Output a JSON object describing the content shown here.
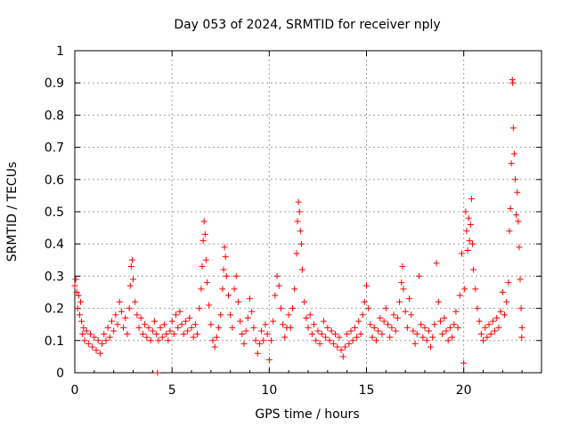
{
  "chart_data": {
    "type": "scatter",
    "title": "Day 053 of 2024, SRMTID for receiver nply",
    "xlabel": "GPS time / hours",
    "ylabel": "SRMTID / TECUs",
    "xlim": [
      0,
      24
    ],
    "ylim": [
      0,
      1
    ],
    "grid": true,
    "marker": "+",
    "color": "#ff0000",
    "xticks": [
      0,
      5,
      10,
      15,
      20
    ],
    "xtick_labels": [
      "0",
      "5",
      "10",
      "15",
      "20"
    ],
    "yticks": [
      0,
      0.1,
      0.2,
      0.3,
      0.4,
      0.5,
      0.6,
      0.7,
      0.8,
      0.9,
      1
    ],
    "ytick_labels": [
      "0",
      "0.1",
      "0.2",
      "0.3",
      "0.4",
      "0.5",
      "0.6",
      "0.7",
      "0.8",
      "0.9",
      "1"
    ],
    "series": [
      {
        "name": "SRMTID",
        "points": [
          [
            0.0,
            0.27
          ],
          [
            0.05,
            0.29
          ],
          [
            0.1,
            0.25
          ],
          [
            0.15,
            0.2
          ],
          [
            0.2,
            0.24
          ],
          [
            0.25,
            0.18
          ],
          [
            0.3,
            0.22
          ],
          [
            0.35,
            0.16
          ],
          [
            0.4,
            0.12
          ],
          [
            0.45,
            0.14
          ],
          [
            0.5,
            0.1
          ],
          [
            0.6,
            0.13
          ],
          [
            0.7,
            0.09
          ],
          [
            0.8,
            0.12
          ],
          [
            0.9,
            0.08
          ],
          [
            1.0,
            0.11
          ],
          [
            1.1,
            0.07
          ],
          [
            1.2,
            0.1
          ],
          [
            1.3,
            0.06
          ],
          [
            1.4,
            0.09
          ],
          [
            1.5,
            0.12
          ],
          [
            1.6,
            0.1
          ],
          [
            1.7,
            0.14
          ],
          [
            1.8,
            0.11
          ],
          [
            1.9,
            0.16
          ],
          [
            2.0,
            0.13
          ],
          [
            2.1,
            0.18
          ],
          [
            2.2,
            0.15
          ],
          [
            2.3,
            0.22
          ],
          [
            2.4,
            0.19
          ],
          [
            2.5,
            0.14
          ],
          [
            2.6,
            0.17
          ],
          [
            2.7,
            0.12
          ],
          [
            2.8,
            0.2
          ],
          [
            2.85,
            0.27
          ],
          [
            2.9,
            0.33
          ],
          [
            2.95,
            0.35
          ],
          [
            3.0,
            0.29
          ],
          [
            3.1,
            0.22
          ],
          [
            3.2,
            0.18
          ],
          [
            3.3,
            0.14
          ],
          [
            3.4,
            0.17
          ],
          [
            3.5,
            0.12
          ],
          [
            3.6,
            0.15
          ],
          [
            3.7,
            0.11
          ],
          [
            3.8,
            0.14
          ],
          [
            3.9,
            0.1
          ],
          [
            4.0,
            0.13
          ],
          [
            4.1,
            0.16
          ],
          [
            4.2,
            0.12
          ],
          [
            4.25,
            0.0
          ],
          [
            4.3,
            0.1
          ],
          [
            4.4,
            0.14
          ],
          [
            4.5,
            0.11
          ],
          [
            4.6,
            0.15
          ],
          [
            4.7,
            0.12
          ],
          [
            4.8,
            0.1
          ],
          [
            4.9,
            0.13
          ],
          [
            5.0,
            0.16
          ],
          [
            5.1,
            0.12
          ],
          [
            5.2,
            0.18
          ],
          [
            5.3,
            0.14
          ],
          [
            5.4,
            0.19
          ],
          [
            5.5,
            0.15
          ],
          [
            5.6,
            0.12
          ],
          [
            5.7,
            0.16
          ],
          [
            5.8,
            0.13
          ],
          [
            5.9,
            0.17
          ],
          [
            6.0,
            0.14
          ],
          [
            6.1,
            0.11
          ],
          [
            6.2,
            0.15
          ],
          [
            6.3,
            0.12
          ],
          [
            6.4,
            0.2
          ],
          [
            6.5,
            0.26
          ],
          [
            6.55,
            0.33
          ],
          [
            6.6,
            0.41
          ],
          [
            6.65,
            0.47
          ],
          [
            6.7,
            0.43
          ],
          [
            6.75,
            0.35
          ],
          [
            6.8,
            0.28
          ],
          [
            6.9,
            0.21
          ],
          [
            7.0,
            0.15
          ],
          [
            7.1,
            0.1
          ],
          [
            7.2,
            0.08
          ],
          [
            7.3,
            0.11
          ],
          [
            7.4,
            0.14
          ],
          [
            7.5,
            0.18
          ],
          [
            7.6,
            0.26
          ],
          [
            7.65,
            0.32
          ],
          [
            7.7,
            0.39
          ],
          [
            7.75,
            0.36
          ],
          [
            7.8,
            0.3
          ],
          [
            7.9,
            0.24
          ],
          [
            8.0,
            0.18
          ],
          [
            8.1,
            0.14
          ],
          [
            8.2,
            0.26
          ],
          [
            8.3,
            0.3
          ],
          [
            8.4,
            0.22
          ],
          [
            8.5,
            0.16
          ],
          [
            8.6,
            0.12
          ],
          [
            8.7,
            0.09
          ],
          [
            8.8,
            0.13
          ],
          [
            8.9,
            0.17
          ],
          [
            9.0,
            0.23
          ],
          [
            9.1,
            0.19
          ],
          [
            9.2,
            0.14
          ],
          [
            9.3,
            0.1
          ],
          [
            9.4,
            0.06
          ],
          [
            9.5,
            0.09
          ],
          [
            9.6,
            0.13
          ],
          [
            9.7,
            0.1
          ],
          [
            9.8,
            0.15
          ],
          [
            9.9,
            0.12
          ],
          [
            10.0,
            0.04
          ],
          [
            10.1,
            0.1
          ],
          [
            10.2,
            0.16
          ],
          [
            10.3,
            0.24
          ],
          [
            10.4,
            0.3
          ],
          [
            10.5,
            0.27
          ],
          [
            10.6,
            0.2
          ],
          [
            10.7,
            0.15
          ],
          [
            10.8,
            0.11
          ],
          [
            10.9,
            0.14
          ],
          [
            11.0,
            0.18
          ],
          [
            11.1,
            0.14
          ],
          [
            11.2,
            0.2
          ],
          [
            11.3,
            0.26
          ],
          [
            11.4,
            0.37
          ],
          [
            11.45,
            0.47
          ],
          [
            11.5,
            0.53
          ],
          [
            11.55,
            0.5
          ],
          [
            11.6,
            0.44
          ],
          [
            11.65,
            0.4
          ],
          [
            11.7,
            0.32
          ],
          [
            11.8,
            0.22
          ],
          [
            11.9,
            0.17
          ],
          [
            12.0,
            0.14
          ],
          [
            12.1,
            0.18
          ],
          [
            12.2,
            0.12
          ],
          [
            12.3,
            0.15
          ],
          [
            12.4,
            0.1
          ],
          [
            12.5,
            0.13
          ],
          [
            12.6,
            0.09
          ],
          [
            12.7,
            0.12
          ],
          [
            12.8,
            0.16
          ],
          [
            12.9,
            0.11
          ],
          [
            13.0,
            0.14
          ],
          [
            13.1,
            0.1
          ],
          [
            13.2,
            0.13
          ],
          [
            13.3,
            0.09
          ],
          [
            13.4,
            0.12
          ],
          [
            13.5,
            0.08
          ],
          [
            13.6,
            0.11
          ],
          [
            13.7,
            0.07
          ],
          [
            13.8,
            0.05
          ],
          [
            13.9,
            0.08
          ],
          [
            14.0,
            0.12
          ],
          [
            14.1,
            0.09
          ],
          [
            14.2,
            0.13
          ],
          [
            14.3,
            0.1
          ],
          [
            14.4,
            0.14
          ],
          [
            14.5,
            0.11
          ],
          [
            14.6,
            0.16
          ],
          [
            14.7,
            0.12
          ],
          [
            14.8,
            0.18
          ],
          [
            14.9,
            0.22
          ],
          [
            15.0,
            0.27
          ],
          [
            15.1,
            0.2
          ],
          [
            15.2,
            0.15
          ],
          [
            15.3,
            0.11
          ],
          [
            15.4,
            0.14
          ],
          [
            15.5,
            0.1
          ],
          [
            15.6,
            0.13
          ],
          [
            15.7,
            0.17
          ],
          [
            15.8,
            0.12
          ],
          [
            15.9,
            0.16
          ],
          [
            16.0,
            0.2
          ],
          [
            16.1,
            0.15
          ],
          [
            16.2,
            0.11
          ],
          [
            16.3,
            0.14
          ],
          [
            16.4,
            0.18
          ],
          [
            16.5,
            0.13
          ],
          [
            16.6,
            0.17
          ],
          [
            16.7,
            0.22
          ],
          [
            16.8,
            0.28
          ],
          [
            16.85,
            0.33
          ],
          [
            16.9,
            0.26
          ],
          [
            17.0,
            0.19
          ],
          [
            17.1,
            0.14
          ],
          [
            17.2,
            0.23
          ],
          [
            17.3,
            0.18
          ],
          [
            17.4,
            0.13
          ],
          [
            17.5,
            0.09
          ],
          [
            17.6,
            0.12
          ],
          [
            17.7,
            0.3
          ],
          [
            17.8,
            0.15
          ],
          [
            17.9,
            0.11
          ],
          [
            18.0,
            0.14
          ],
          [
            18.1,
            0.1
          ],
          [
            18.2,
            0.13
          ],
          [
            18.3,
            0.08
          ],
          [
            18.4,
            0.11
          ],
          [
            18.5,
            0.15
          ],
          [
            18.6,
            0.34
          ],
          [
            18.7,
            0.22
          ],
          [
            18.8,
            0.16
          ],
          [
            18.9,
            0.12
          ],
          [
            19.0,
            0.17
          ],
          [
            19.1,
            0.13
          ],
          [
            19.2,
            0.1
          ],
          [
            19.3,
            0.14
          ],
          [
            19.4,
            0.11
          ],
          [
            19.5,
            0.15
          ],
          [
            19.6,
            0.19
          ],
          [
            19.7,
            0.14
          ],
          [
            19.8,
            0.24
          ],
          [
            19.9,
            0.37
          ],
          [
            20.0,
            0.03
          ],
          [
            20.05,
            0.26
          ],
          [
            20.1,
            0.5
          ],
          [
            20.15,
            0.44
          ],
          [
            20.2,
            0.38
          ],
          [
            20.25,
            0.48
          ],
          [
            20.3,
            0.41
          ],
          [
            20.35,
            0.46
          ],
          [
            20.4,
            0.54
          ],
          [
            20.45,
            0.4
          ],
          [
            20.5,
            0.32
          ],
          [
            20.6,
            0.26
          ],
          [
            20.7,
            0.2
          ],
          [
            20.8,
            0.16
          ],
          [
            20.9,
            0.12
          ],
          [
            21.0,
            0.1
          ],
          [
            21.1,
            0.14
          ],
          [
            21.2,
            0.11
          ],
          [
            21.3,
            0.15
          ],
          [
            21.4,
            0.12
          ],
          [
            21.5,
            0.16
          ],
          [
            21.6,
            0.13
          ],
          [
            21.7,
            0.17
          ],
          [
            21.8,
            0.14
          ],
          [
            21.9,
            0.19
          ],
          [
            22.0,
            0.25
          ],
          [
            22.1,
            0.18
          ],
          [
            22.2,
            0.22
          ],
          [
            22.3,
            0.28
          ],
          [
            22.35,
            0.44
          ],
          [
            22.4,
            0.51
          ],
          [
            22.45,
            0.65
          ],
          [
            22.5,
            0.91
          ],
          [
            22.52,
            0.9
          ],
          [
            22.55,
            0.76
          ],
          [
            22.6,
            0.68
          ],
          [
            22.65,
            0.6
          ],
          [
            22.7,
            0.49
          ],
          [
            22.75,
            0.56
          ],
          [
            22.8,
            0.47
          ],
          [
            22.85,
            0.39
          ],
          [
            22.9,
            0.29
          ],
          [
            22.95,
            0.2
          ],
          [
            23.0,
            0.14
          ],
          [
            22.98,
            0.11
          ]
        ]
      }
    ]
  }
}
